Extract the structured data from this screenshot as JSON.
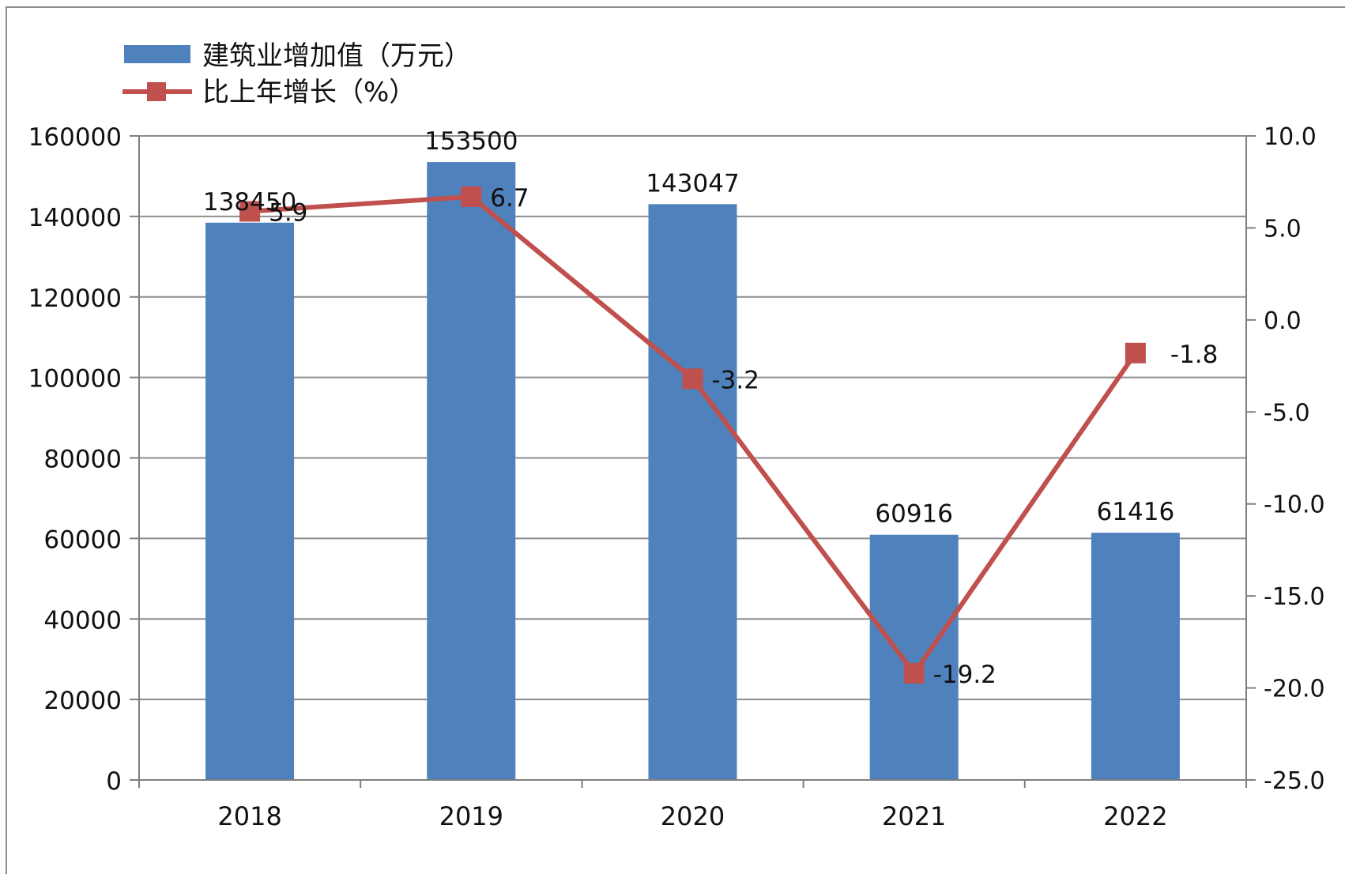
{
  "chart_data": {
    "type": "bar",
    "categories": [
      "2018",
      "2019",
      "2020",
      "2021",
      "2022"
    ],
    "series": [
      {
        "name": "建筑业增加值（万元）",
        "type": "bar",
        "axis": "left",
        "color": "#4f81bd",
        "values": [
          138450,
          153500,
          143047,
          60916,
          61416
        ],
        "labels": [
          "138450",
          "153500",
          "143047",
          "60916",
          "61416"
        ]
      },
      {
        "name": "比上年增长（%）",
        "type": "line",
        "axis": "right",
        "color": "#c0504d",
        "marker": "square",
        "values": [
          5.9,
          6.7,
          -3.2,
          -19.2,
          -1.8
        ],
        "labels": [
          "5.9",
          "6.7",
          "-3.2",
          "-19.2",
          "-1.8"
        ]
      }
    ],
    "y_left": {
      "ylim": [
        0,
        160000
      ],
      "ticks": [
        "0",
        "20000",
        "40000",
        "60000",
        "80000",
        "100000",
        "120000",
        "140000",
        "160000"
      ]
    },
    "y_right": {
      "ylim": [
        -25,
        10
      ],
      "ticks": [
        "-25.0",
        "-20.0",
        "-15.0",
        "-10.0",
        "-5.0",
        "0.0",
        "5.0",
        "10.0"
      ]
    },
    "grid": true,
    "legend_position": "top-left"
  },
  "colors": {
    "bar": "#4f81bd",
    "line": "#c0504d",
    "grid": "#8c8c8c",
    "axis": "#7f7f7f"
  }
}
